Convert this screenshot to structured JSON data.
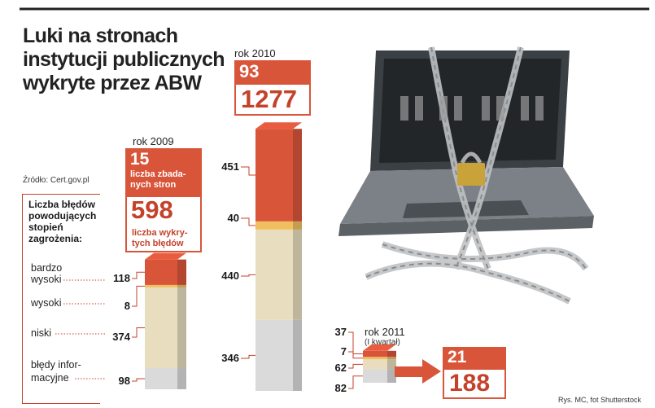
{
  "title": "Luki na stronach instytucji publicznych wykryte przez ABW",
  "source": "Źródło: Cert.gov.pl",
  "legend_title": "Liczba błędów powodujących stopień zagrożenia:",
  "credit": "Rys. MC, fot Shutterstock",
  "colors": {
    "accent": "#d9553a",
    "very_high": "#d9553a",
    "high": "#f0c060",
    "low": "#e8ddbf",
    "info": "#dadada"
  },
  "chart_data": {
    "type": "bar",
    "stacked": true,
    "title": "Luki na stronach instytucji publicznych wykryte przez ABW",
    "categories": [
      "rok 2009",
      "rok 2010",
      "rok 2011 (I kwartał)"
    ],
    "series": [
      {
        "name": "błędy informacyjne",
        "values": [
          98,
          346,
          82
        ]
      },
      {
        "name": "niski",
        "values": [
          374,
          440,
          62
        ]
      },
      {
        "name": "wysoki",
        "values": [
          8,
          40,
          7
        ]
      },
      {
        "name": "bardzo wysoki",
        "values": [
          118,
          451,
          37
        ]
      }
    ],
    "sites_checked": [
      15,
      93,
      21
    ],
    "errors_total": [
      598,
      1277,
      188
    ],
    "label_sites": "liczba zbadanych stron",
    "label_sites_lines": [
      "liczba zbada-",
      "nych stron"
    ],
    "label_errors": "liczba wykrytych błędów",
    "label_errors_lines": [
      "liczba wykry-",
      "tych błędów"
    ],
    "levels": [
      {
        "key": "very_high",
        "lines": [
          "bardzo",
          "wysoki"
        ]
      },
      {
        "key": "high",
        "lines": [
          "wysoki"
        ]
      },
      {
        "key": "low",
        "lines": [
          "niski"
        ]
      },
      {
        "key": "info",
        "lines": [
          "błędy infor-",
          "macyjne"
        ]
      }
    ],
    "year_2011_lines": [
      "rok 2011",
      "(I kwartał)"
    ],
    "legend": "left",
    "grid": false
  }
}
